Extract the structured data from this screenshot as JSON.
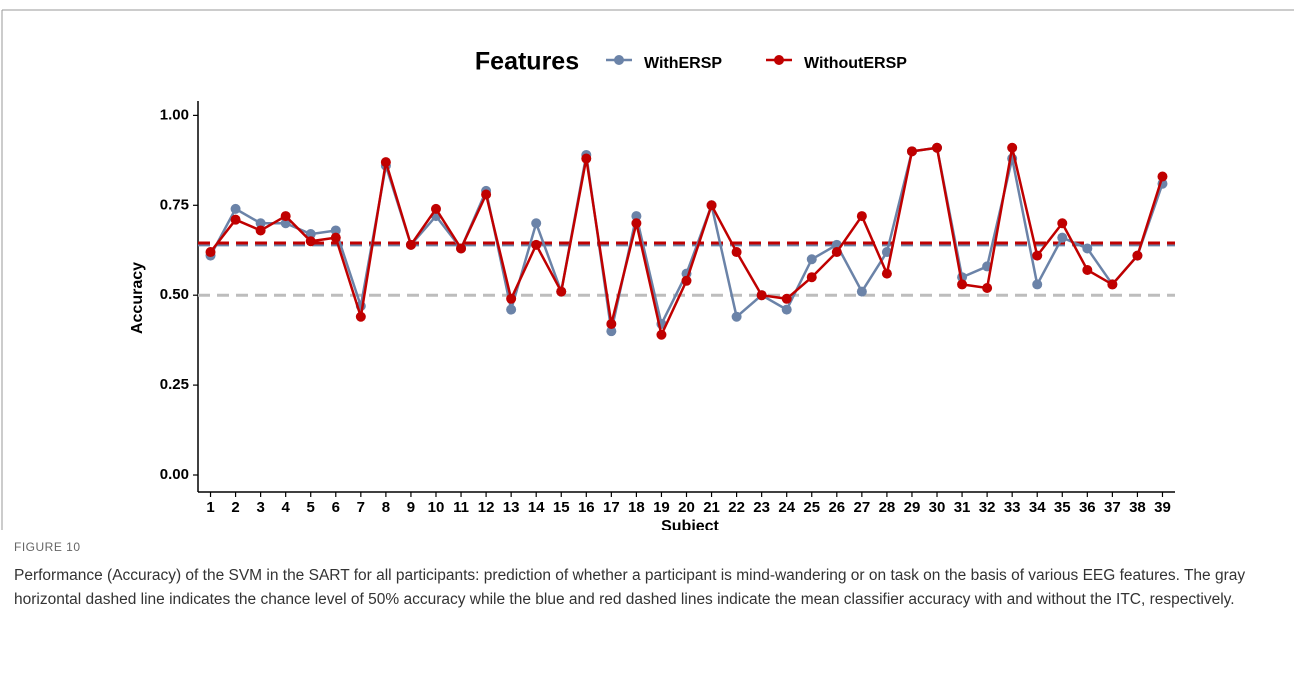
{
  "chart_data": {
    "type": "line",
    "legend_title": "Features",
    "xlabel": "Subject",
    "ylabel": "Accuracy",
    "categories": [
      "1",
      "2",
      "3",
      "4",
      "5",
      "6",
      "7",
      "8",
      "9",
      "10",
      "11",
      "12",
      "13",
      "14",
      "15",
      "16",
      "17",
      "18",
      "19",
      "20",
      "21",
      "22",
      "23",
      "24",
      "25",
      "26",
      "27",
      "28",
      "29",
      "30",
      "31",
      "32",
      "33",
      "34",
      "35",
      "36",
      "37",
      "38",
      "39"
    ],
    "series": [
      {
        "name": "WithERSP",
        "color": "#6b83a8",
        "values": [
          0.61,
          0.74,
          0.7,
          0.7,
          0.67,
          0.68,
          0.47,
          0.86,
          0.64,
          0.72,
          0.63,
          0.79,
          0.46,
          0.7,
          0.51,
          0.89,
          0.4,
          0.72,
          0.42,
          0.56,
          0.75,
          0.44,
          0.5,
          0.46,
          0.6,
          0.64,
          0.51,
          0.62,
          0.9,
          0.91,
          0.55,
          0.58,
          0.88,
          0.53,
          0.66,
          0.63,
          0.53,
          0.61,
          0.81
        ]
      },
      {
        "name": "WithoutERSP",
        "color": "#c00000",
        "values": [
          0.62,
          0.71,
          0.68,
          0.72,
          0.65,
          0.66,
          0.44,
          0.87,
          0.64,
          0.74,
          0.63,
          0.78,
          0.49,
          0.64,
          0.51,
          0.88,
          0.42,
          0.7,
          0.39,
          0.54,
          0.75,
          0.62,
          0.5,
          0.49,
          0.55,
          0.62,
          0.72,
          0.56,
          0.9,
          0.91,
          0.53,
          0.52,
          0.91,
          0.61,
          0.7,
          0.57,
          0.53,
          0.61,
          0.83
        ]
      }
    ],
    "reference_lines": [
      {
        "value": 0.5,
        "color": "#bdbdbd"
      },
      {
        "value": 0.64,
        "color": "#6b83a8"
      },
      {
        "value": 0.645,
        "color": "#c00000"
      }
    ],
    "ylim": [
      0,
      1.04
    ],
    "yticks": [
      {
        "value": 0,
        "label": "0.00"
      },
      {
        "value": 0.25,
        "label": "0.25"
      },
      {
        "value": 0.5,
        "label": "0.50"
      },
      {
        "value": 0.75,
        "label": "0.75"
      },
      {
        "value": 1,
        "label": "1.00"
      }
    ],
    "legend_position": "top",
    "grid": false
  },
  "figure_label": "FIGURE 10",
  "caption": "Performance (Accuracy) of the SVM in the SART for all participants: prediction of whether a participant is mind-wandering or on task on the basis of various EEG features. The gray horizontal dashed line indicates the chance level of 50% accuracy while the blue and red dashed lines indicate the mean classifier accuracy with and without the ITC, respectively."
}
